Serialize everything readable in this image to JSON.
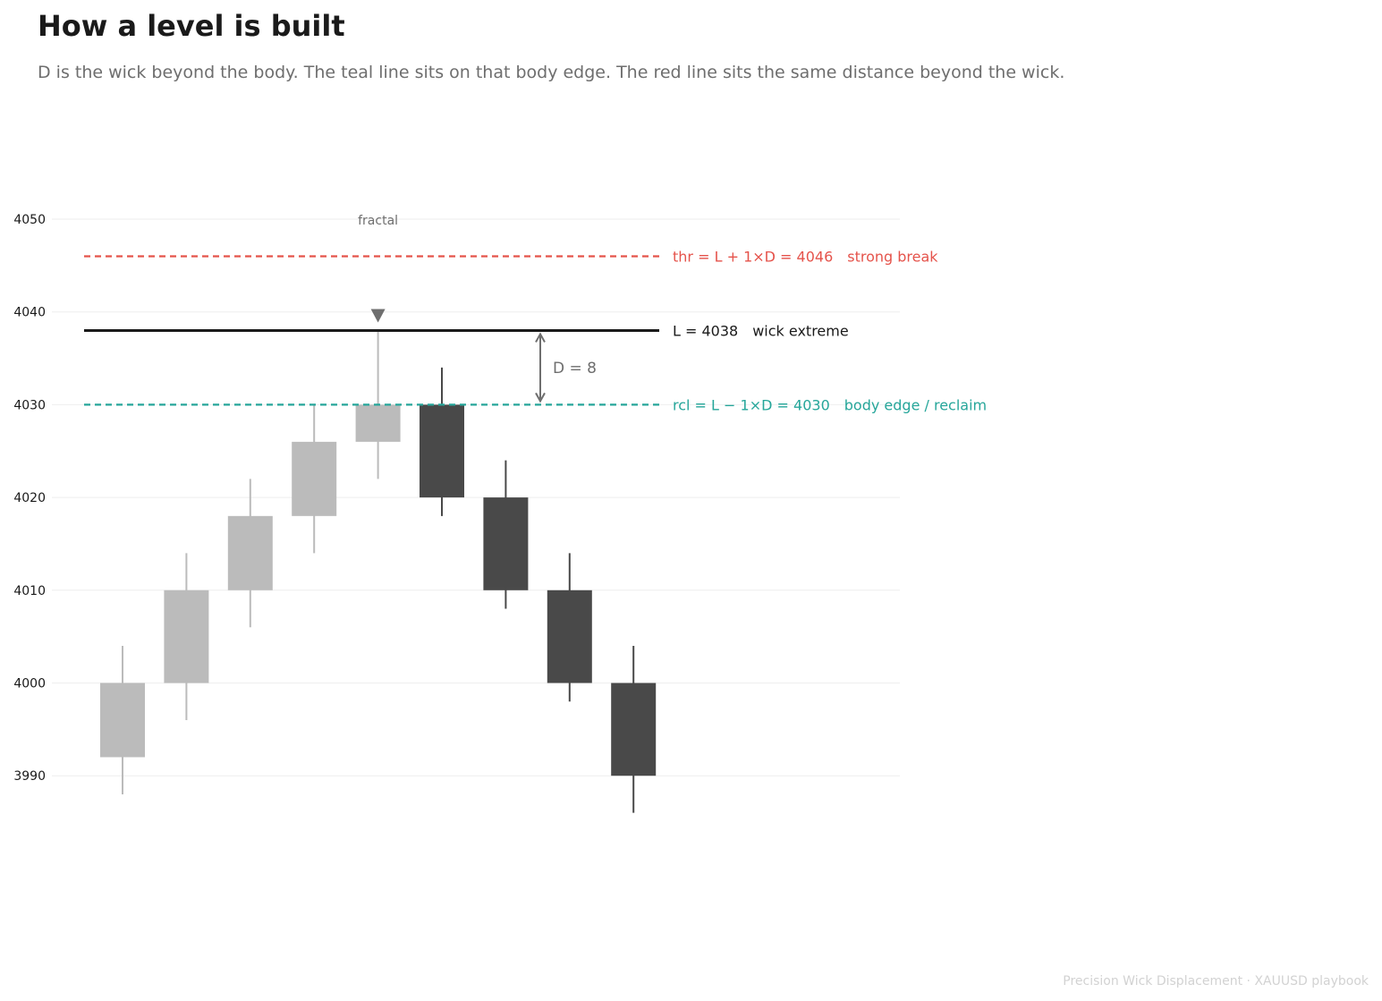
{
  "title": "How a level is built",
  "subtitle": "D is the wick beyond the body. The teal line sits on that body edge. The red line sits the same distance beyond the wick.",
  "footer": "Precision Wick Displacement  ·  XAUUSD playbook",
  "colors": {
    "bull": "#bbbbbb",
    "bear": "#494949",
    "level": "#1a1a1a",
    "threshold": "#e5534b",
    "reclaim": "#26a69a",
    "annotation": "#6e6e6e",
    "grid": "#eeeeee"
  },
  "chart_data": {
    "type": "candlestick",
    "ylim": [
      3980,
      4050
    ],
    "yticks": [
      4050,
      4040,
      4030,
      4020,
      4010,
      4000,
      3990
    ],
    "grid": true,
    "candles": [
      {
        "open": 3992,
        "high": 4004,
        "low": 3988,
        "close": 4000
      },
      {
        "open": 4000,
        "high": 4014,
        "low": 3996,
        "close": 4010
      },
      {
        "open": 4010,
        "high": 4022,
        "low": 4006,
        "close": 4018
      },
      {
        "open": 4018,
        "high": 4030,
        "low": 4014,
        "close": 4026
      },
      {
        "open": 4026,
        "high": 4038,
        "low": 4022,
        "close": 4030
      },
      {
        "open": 4030,
        "high": 4034,
        "low": 4018,
        "close": 4020
      },
      {
        "open": 4020,
        "high": 4024,
        "low": 4008,
        "close": 4010
      },
      {
        "open": 4010,
        "high": 4014,
        "low": 3998,
        "close": 4000
      },
      {
        "open": 4000,
        "high": 4004,
        "low": 3986,
        "close": 3990
      }
    ],
    "fractal": {
      "index": 4,
      "label": "fractal",
      "marker": "down-triangle"
    },
    "levels": [
      {
        "name": "thr",
        "value": 4046,
        "style": "dashed",
        "color": "#e5534b",
        "label": "thr = L + 1×D = 4046",
        "note": "strong break"
      },
      {
        "name": "L",
        "value": 4038,
        "style": "solid",
        "color": "#1a1a1a",
        "label": "L = 4038",
        "note": "wick extreme"
      },
      {
        "name": "rcl",
        "value": 4030,
        "style": "dashed",
        "color": "#26a69a",
        "label": "rcl = L − 1×D = 4030",
        "note": "body edge / reclaim"
      }
    ],
    "displacement": {
      "from": 4038,
      "to": 4030,
      "label": "D = 8"
    }
  }
}
